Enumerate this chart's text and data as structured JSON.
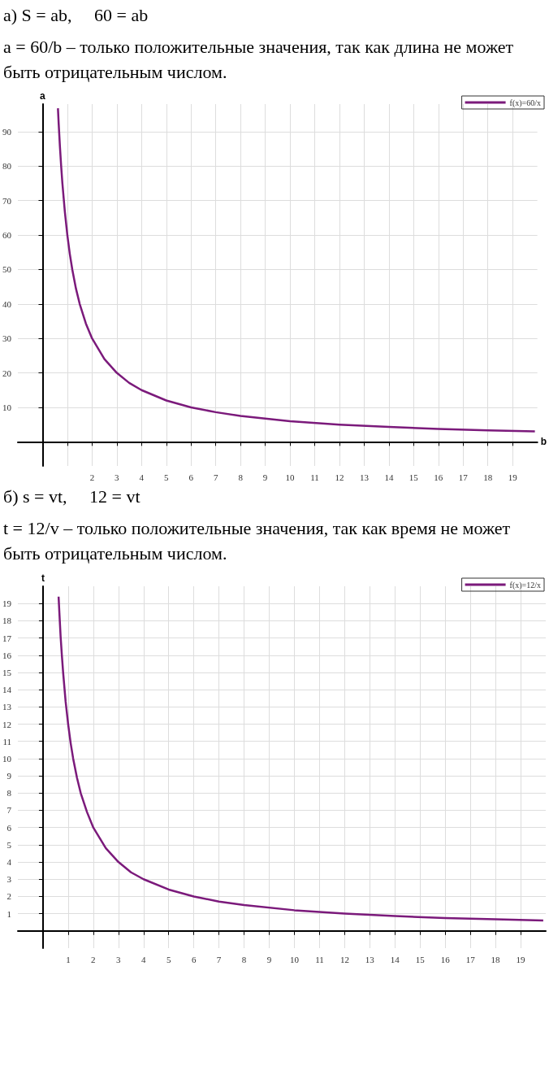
{
  "chart_data": [
    {
      "type": "line",
      "title": "а) S = ab,     60 = ab",
      "subtitle": "a = 60/b – только положительные значения, так как длина не может быть отрицательным числом.",
      "xlabel": "b",
      "ylabel": "a",
      "x": [
        0.62,
        0.65,
        0.7,
        0.75,
        0.8,
        0.9,
        1,
        1.1,
        1.2,
        1.35,
        1.5,
        1.75,
        2,
        2.5,
        3,
        3.5,
        4,
        5,
        6,
        7,
        8,
        10,
        12,
        14,
        16,
        18,
        19.9
      ],
      "series": [
        {
          "name": "f(x)=60/x",
          "color": "#7b1a7b",
          "values": [
            96.8,
            92.3,
            85.7,
            80,
            75,
            66.7,
            60,
            54.5,
            50,
            44.4,
            40,
            34.3,
            30,
            24,
            20,
            17.1,
            15,
            12,
            10,
            8.6,
            7.5,
            6,
            5,
            4.3,
            3.75,
            3.3,
            3.0
          ]
        }
      ],
      "xlim": [
        -1,
        20
      ],
      "ylim": [
        -7,
        98
      ],
      "xticks": [
        {
          "value": 1,
          "label": null
        },
        2,
        3,
        4,
        5,
        6,
        7,
        8,
        9,
        10,
        11,
        12,
        13,
        14,
        15,
        16,
        17,
        18,
        19
      ],
      "yticks": [
        10,
        20,
        30,
        40,
        50,
        60,
        70,
        80,
        90
      ],
      "grid": true,
      "legend": "top right",
      "marker": "none",
      "line_style": "solid"
    },
    {
      "type": "line",
      "title": "б) s = vt,     12 = vt",
      "subtitle": "t = 12/v – только положительные значения, так как время не может быть отрицательным числом.",
      "ylabel": "t",
      "x": [
        0.62,
        0.65,
        0.7,
        0.75,
        0.8,
        0.9,
        1,
        1.1,
        1.2,
        1.35,
        1.5,
        1.75,
        2,
        2.5,
        3,
        3.5,
        4,
        5,
        6,
        7,
        8,
        10,
        12,
        14,
        16,
        18,
        19.9
      ],
      "series": [
        {
          "name": "f(x)=12/x",
          "color": "#7b1a7b",
          "values": [
            19.4,
            18.5,
            17.1,
            16,
            15,
            13.3,
            12,
            10.9,
            10,
            8.9,
            8,
            6.9,
            6,
            4.8,
            4,
            3.4,
            3,
            2.4,
            2,
            1.7,
            1.5,
            1.2,
            1,
            0.86,
            0.75,
            0.67,
            0.6
          ]
        }
      ],
      "xlim": [
        -1,
        20
      ],
      "ylim": [
        -1,
        20
      ],
      "xticks": [
        1,
        2,
        3,
        4,
        5,
        6,
        7,
        8,
        9,
        10,
        11,
        12,
        13,
        14,
        15,
        16,
        17,
        18,
        19
      ],
      "yticks": [
        1,
        2,
        3,
        4,
        5,
        6,
        7,
        8,
        9,
        10,
        11,
        12,
        13,
        14,
        15,
        16,
        17,
        18,
        19
      ],
      "grid": true,
      "legend": "top right",
      "marker": "none",
      "line_style": "solid"
    }
  ]
}
